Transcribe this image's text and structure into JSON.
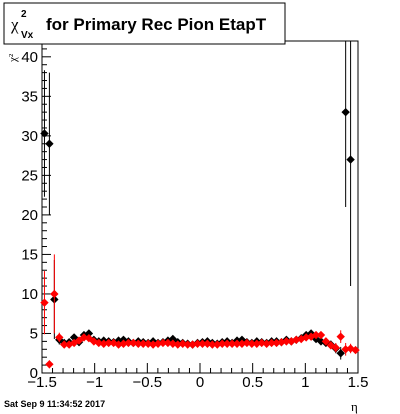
{
  "title": {
    "symbol": "χ",
    "superscript": "2",
    "subscript": "Vx",
    "text": "for Primary Rec Pion EtapT"
  },
  "footer": {
    "timestamp": "Sat Sep  9 11:34:52 2017"
  },
  "colors": {
    "series_black": "#000000",
    "series_red": "#ff0000",
    "axis": "#000000"
  },
  "chart_data": {
    "type": "scatter",
    "title": "χ²_Vx for Primary Rec Pion EtapT",
    "xlabel": "η",
    "ylabel": "χ²",
    "xlim": [
      -1.5,
      1.5
    ],
    "ylim": [
      0,
      42
    ],
    "x_ticks": [
      -1.5,
      -1,
      -0.5,
      0,
      0.5,
      1,
      1.5
    ],
    "x_tick_labels": [
      "−1.5",
      "−1",
      "−0.5",
      "0",
      "0.5",
      "1",
      "1.5"
    ],
    "y_ticks": [
      0,
      5,
      10,
      15,
      20,
      25,
      30,
      35,
      40
    ],
    "y_tick_labels": [
      "0",
      "5",
      "10",
      "15",
      "20",
      "25",
      "30",
      "35",
      "40"
    ],
    "grid": false,
    "legend": "none",
    "series": [
      {
        "color": "#000000",
        "x": [
          -1.4766,
          -1.4297,
          -1.3828,
          -1.3359,
          -1.2891,
          -1.2422,
          -1.1953,
          -1.1484,
          -1.1016,
          -1.0547,
          -1.0078,
          -0.9609,
          -0.9141,
          -0.8672,
          -0.8203,
          -0.7734,
          -0.7266,
          -0.6797,
          -0.6328,
          -0.5859,
          -0.5391,
          -0.4922,
          -0.4453,
          -0.3984,
          -0.3516,
          -0.3047,
          -0.2578,
          -0.2109,
          -0.1641,
          -0.1172,
          -0.0703,
          -0.0234,
          0.0234,
          0.0703,
          0.1172,
          0.1641,
          0.2109,
          0.2578,
          0.3047,
          0.3516,
          0.3984,
          0.4453,
          0.4922,
          0.5391,
          0.5859,
          0.6328,
          0.6797,
          0.7266,
          0.7734,
          0.8203,
          0.8672,
          0.9141,
          0.9609,
          1.0078,
          1.0547,
          1.1016,
          1.1484,
          1.1953,
          1.2422,
          1.2891,
          1.3359,
          1.3828,
          1.4297,
          1.4766
        ],
        "y": [
          30.3,
          29.0,
          9.3,
          4.2,
          3.8,
          3.9,
          4.5,
          3.9,
          4.8,
          5.0,
          4.2,
          4.0,
          4.1,
          4.0,
          3.9,
          4.1,
          4.2,
          4.0,
          3.8,
          4.0,
          3.9,
          3.8,
          4.0,
          3.8,
          3.9,
          4.1,
          4.3,
          3.9,
          3.8,
          3.7,
          3.6,
          3.8,
          3.9,
          4.0,
          3.8,
          3.7,
          3.9,
          4.0,
          3.8,
          4.1,
          4.2,
          3.9,
          3.8,
          4.0,
          3.9,
          3.8,
          4.0,
          4.0,
          3.9,
          4.2,
          4.0,
          4.2,
          4.4,
          4.8,
          5.0,
          4.3,
          4.0,
          3.8,
          3.6,
          3.1,
          2.5,
          33.0,
          27.0,
          null
        ],
        "yerr": [
          8,
          9,
          5,
          0.6,
          0.4,
          0.3,
          0.3,
          0.3,
          0.3,
          0.3,
          0.2,
          0.2,
          0.2,
          0.2,
          0.2,
          0.2,
          0.2,
          0.2,
          0.2,
          0.2,
          0.2,
          0.2,
          0.2,
          0.2,
          0.2,
          0.2,
          0.2,
          0.2,
          0.2,
          0.2,
          0.2,
          0.2,
          0.2,
          0.2,
          0.2,
          0.2,
          0.2,
          0.2,
          0.2,
          0.2,
          0.2,
          0.2,
          0.2,
          0.2,
          0.2,
          0.2,
          0.2,
          0.2,
          0.2,
          0.2,
          0.2,
          0.2,
          0.2,
          0.3,
          0.3,
          0.3,
          0.3,
          0.4,
          0.5,
          0.6,
          0.8,
          12,
          16,
          0
        ]
      },
      {
        "color": "#ff0000",
        "x": [
          -1.4766,
          -1.4297,
          -1.3828,
          -1.3359,
          -1.2891,
          -1.2422,
          -1.1953,
          -1.1484,
          -1.1016,
          -1.0547,
          -1.0078,
          -0.9609,
          -0.9141,
          -0.8672,
          -0.8203,
          -0.7734,
          -0.7266,
          -0.6797,
          -0.6328,
          -0.5859,
          -0.5391,
          -0.4922,
          -0.4453,
          -0.3984,
          -0.3516,
          -0.3047,
          -0.2578,
          -0.2109,
          -0.1641,
          -0.1172,
          -0.0703,
          -0.0234,
          0.0234,
          0.0703,
          0.1172,
          0.1641,
          0.2109,
          0.2578,
          0.3047,
          0.3516,
          0.3984,
          0.4453,
          0.4922,
          0.5391,
          0.5859,
          0.6328,
          0.6797,
          0.7266,
          0.7734,
          0.8203,
          0.8672,
          0.9141,
          0.9609,
          1.0078,
          1.0547,
          1.1016,
          1.1484,
          1.1953,
          1.2422,
          1.2891,
          1.3359,
          1.3828,
          1.4297,
          1.4766
        ],
        "y": [
          8.9,
          1.1,
          10.0,
          4.5,
          3.6,
          3.6,
          3.8,
          4.1,
          4.5,
          4.4,
          4.0,
          3.8,
          3.7,
          3.8,
          3.8,
          3.6,
          3.7,
          3.8,
          3.8,
          3.7,
          3.7,
          3.7,
          3.6,
          3.7,
          3.8,
          3.8,
          3.7,
          3.6,
          3.7,
          3.6,
          3.6,
          3.7,
          3.7,
          3.7,
          3.6,
          3.6,
          3.7,
          3.7,
          3.7,
          3.7,
          3.7,
          3.8,
          3.7,
          3.7,
          3.8,
          3.7,
          3.8,
          3.8,
          3.9,
          4.0,
          4.0,
          4.2,
          4.3,
          4.5,
          4.6,
          4.8,
          4.8,
          4.0,
          3.5,
          3.2,
          4.6,
          3.0,
          3.1,
          2.9
        ],
        "yerr": [
          4,
          0.5,
          5,
          0.6,
          0.4,
          0.3,
          0.3,
          0.3,
          0.3,
          0.3,
          0.2,
          0.2,
          0.2,
          0.2,
          0.2,
          0.2,
          0.2,
          0.2,
          0.2,
          0.2,
          0.2,
          0.2,
          0.2,
          0.2,
          0.2,
          0.2,
          0.2,
          0.2,
          0.2,
          0.2,
          0.2,
          0.2,
          0.2,
          0.2,
          0.2,
          0.2,
          0.2,
          0.2,
          0.2,
          0.2,
          0.2,
          0.2,
          0.2,
          0.2,
          0.2,
          0.2,
          0.2,
          0.2,
          0.2,
          0.2,
          0.2,
          0.2,
          0.2,
          0.3,
          0.3,
          0.3,
          0.3,
          0.4,
          0.5,
          0.6,
          0.8,
          0.8,
          0.6,
          0.4
        ]
      }
    ]
  }
}
